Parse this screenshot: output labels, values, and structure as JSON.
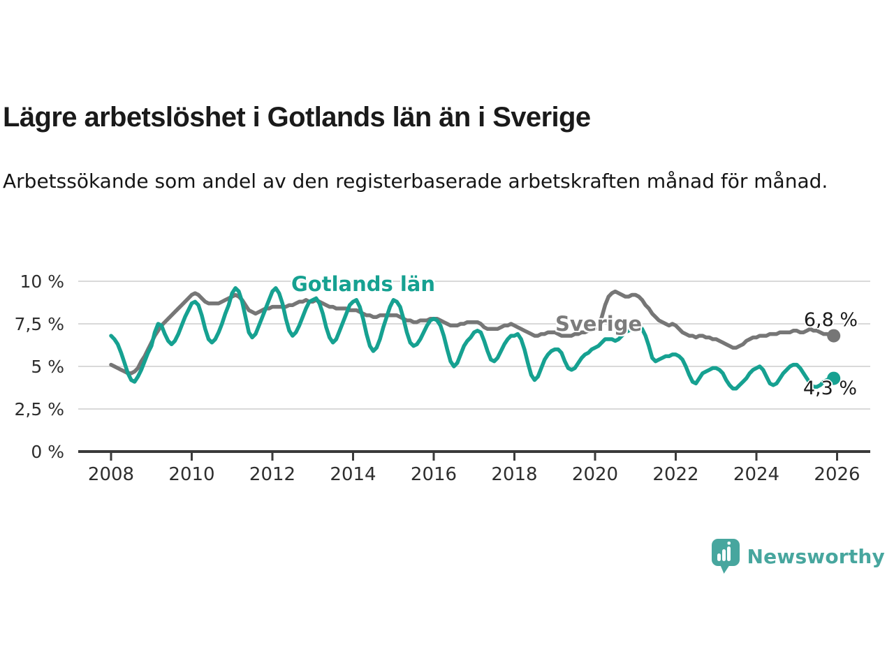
{
  "header": {
    "title": "Lägre arbetslöshet i Gotlands län än i Sverige",
    "subtitle": "Arbetssökande som andel av den registerbaserade arbetskraften månad för månad."
  },
  "chart_data": {
    "type": "line",
    "title": "Lägre arbetslöshet i Gotlands län än i Sverige",
    "ylabel": "",
    "xlabel": "",
    "unit": "percent of registered labour force",
    "grid": true,
    "xlim": [
      2008,
      2026
    ],
    "ylim": [
      0,
      10
    ],
    "x_start_year": 2008,
    "x_frequency": "monthly",
    "yticks": [
      {
        "value": 10,
        "label": "10 %"
      },
      {
        "value": 7.5,
        "label": "7,5 %"
      },
      {
        "value": 5,
        "label": "5 %"
      },
      {
        "value": 2.5,
        "label": "2,5 %"
      },
      {
        "value": 0,
        "label": "0 %"
      }
    ],
    "xticks": [
      {
        "value": 2008,
        "label": "2008"
      },
      {
        "value": 2010,
        "label": "2010"
      },
      {
        "value": 2012,
        "label": "2012"
      },
      {
        "value": 2014,
        "label": "2014"
      },
      {
        "value": 2016,
        "label": "2016"
      },
      {
        "value": 2018,
        "label": "2018"
      },
      {
        "value": 2020,
        "label": "2020"
      },
      {
        "value": 2022,
        "label": "2022"
      },
      {
        "value": 2024,
        "label": "2024"
      },
      {
        "value": 2026,
        "label": "2026"
      }
    ],
    "series": [
      {
        "name": "Sverige",
        "color": "#767676",
        "end_label": "6,8 %",
        "end_value": 6.8,
        "values": [
          5.1,
          5.0,
          4.9,
          4.8,
          4.7,
          4.6,
          4.6,
          4.7,
          4.9,
          5.3,
          5.6,
          6.0,
          6.4,
          6.8,
          7.1,
          7.4,
          7.6,
          7.8,
          8.0,
          8.2,
          8.4,
          8.6,
          8.8,
          9.0,
          9.2,
          9.3,
          9.2,
          9.0,
          8.8,
          8.7,
          8.7,
          8.7,
          8.7,
          8.8,
          8.9,
          9.0,
          9.1,
          9.2,
          9.1,
          8.9,
          8.6,
          8.3,
          8.2,
          8.1,
          8.2,
          8.3,
          8.4,
          8.4,
          8.5,
          8.5,
          8.5,
          8.5,
          8.5,
          8.6,
          8.6,
          8.7,
          8.8,
          8.8,
          8.9,
          8.8,
          8.8,
          8.9,
          8.8,
          8.7,
          8.6,
          8.5,
          8.5,
          8.4,
          8.4,
          8.4,
          8.4,
          8.3,
          8.3,
          8.3,
          8.2,
          8.1,
          8.0,
          8.0,
          7.9,
          7.9,
          8.0,
          8.0,
          8.0,
          8.0,
          8.0,
          8.0,
          7.9,
          7.8,
          7.7,
          7.7,
          7.6,
          7.6,
          7.7,
          7.7,
          7.7,
          7.8,
          7.8,
          7.8,
          7.7,
          7.6,
          7.5,
          7.4,
          7.4,
          7.4,
          7.5,
          7.5,
          7.6,
          7.6,
          7.6,
          7.6,
          7.5,
          7.3,
          7.2,
          7.2,
          7.2,
          7.2,
          7.3,
          7.4,
          7.4,
          7.5,
          7.4,
          7.3,
          7.2,
          7.1,
          7.0,
          6.9,
          6.8,
          6.8,
          6.9,
          6.9,
          7.0,
          7.0,
          7.0,
          6.9,
          6.8,
          6.8,
          6.8,
          6.8,
          6.9,
          6.9,
          7.0,
          7.0,
          7.1,
          7.1,
          7.2,
          7.4,
          7.9,
          8.6,
          9.1,
          9.3,
          9.4,
          9.3,
          9.2,
          9.1,
          9.1,
          9.2,
          9.2,
          9.1,
          8.9,
          8.6,
          8.4,
          8.1,
          7.9,
          7.7,
          7.6,
          7.5,
          7.4,
          7.5,
          7.4,
          7.2,
          7.0,
          6.9,
          6.8,
          6.8,
          6.7,
          6.8,
          6.8,
          6.7,
          6.7,
          6.6,
          6.6,
          6.5,
          6.4,
          6.3,
          6.2,
          6.1,
          6.1,
          6.2,
          6.3,
          6.5,
          6.6,
          6.7,
          6.7,
          6.8,
          6.8,
          6.8,
          6.9,
          6.9,
          6.9,
          7.0,
          7.0,
          7.0,
          7.0,
          7.1,
          7.1,
          7.0,
          7.0,
          7.1,
          7.2,
          7.1,
          7.1,
          7.0,
          6.9,
          6.9,
          6.8,
          6.8
        ]
      },
      {
        "name": "Gotlands län",
        "color": "#16a191",
        "end_label": "4,3 %",
        "end_value": 4.3,
        "values": [
          6.8,
          6.6,
          6.3,
          5.8,
          5.2,
          4.6,
          4.2,
          4.1,
          4.4,
          4.8,
          5.3,
          5.8,
          6.2,
          7.0,
          7.5,
          7.4,
          6.9,
          6.5,
          6.3,
          6.5,
          6.9,
          7.4,
          7.9,
          8.3,
          8.7,
          8.8,
          8.6,
          8.0,
          7.2,
          6.6,
          6.4,
          6.6,
          7.0,
          7.5,
          8.1,
          8.6,
          9.3,
          9.6,
          9.4,
          8.8,
          7.9,
          7.0,
          6.7,
          6.9,
          7.4,
          7.9,
          8.4,
          8.9,
          9.4,
          9.6,
          9.3,
          8.7,
          7.8,
          7.1,
          6.8,
          7.0,
          7.4,
          7.9,
          8.4,
          8.8,
          8.9,
          9.0,
          8.7,
          8.1,
          7.3,
          6.7,
          6.4,
          6.6,
          7.1,
          7.6,
          8.1,
          8.6,
          8.8,
          8.9,
          8.5,
          7.8,
          6.9,
          6.2,
          5.9,
          6.1,
          6.6,
          7.3,
          7.9,
          8.5,
          8.9,
          8.8,
          8.5,
          7.8,
          7.0,
          6.4,
          6.2,
          6.3,
          6.6,
          7.0,
          7.4,
          7.7,
          7.8,
          7.7,
          7.4,
          6.8,
          6.0,
          5.3,
          5.0,
          5.2,
          5.7,
          6.2,
          6.5,
          6.7,
          7.0,
          7.1,
          7.0,
          6.5,
          5.9,
          5.4,
          5.3,
          5.5,
          5.9,
          6.3,
          6.6,
          6.8,
          6.8,
          6.9,
          6.6,
          6.0,
          5.2,
          4.5,
          4.2,
          4.4,
          4.9,
          5.4,
          5.7,
          5.9,
          6.0,
          6.0,
          5.8,
          5.3,
          4.9,
          4.8,
          4.9,
          5.2,
          5.5,
          5.7,
          5.8,
          6.0,
          6.1,
          6.2,
          6.4,
          6.6,
          6.6,
          6.6,
          6.5,
          6.6,
          6.8,
          7.0,
          7.1,
          7.2,
          7.3,
          7.4,
          7.2,
          6.8,
          6.2,
          5.5,
          5.3,
          5.4,
          5.5,
          5.6,
          5.6,
          5.7,
          5.7,
          5.6,
          5.4,
          5.0,
          4.5,
          4.1,
          4.0,
          4.3,
          4.6,
          4.7,
          4.8,
          4.9,
          4.9,
          4.8,
          4.6,
          4.2,
          3.9,
          3.7,
          3.7,
          3.9,
          4.1,
          4.3,
          4.6,
          4.8,
          4.9,
          5.0,
          4.8,
          4.4,
          4.0,
          3.9,
          4.0,
          4.3,
          4.6,
          4.8,
          5.0,
          5.1,
          5.1,
          4.9,
          4.6,
          4.3,
          4.0,
          3.8,
          3.8,
          3.9,
          4.1,
          4.2,
          4.3,
          4.3
        ]
      }
    ],
    "legend_position": "inline-labels",
    "colors": {
      "gotland": "#16a191",
      "sverige": "#767676",
      "gridline": "#d9d9d9",
      "axis": "#3a3a3a",
      "tick_text": "#2e2e2e",
      "brand_teal": "#47a69e"
    }
  },
  "footer": {
    "brand": "Newsworthy"
  }
}
